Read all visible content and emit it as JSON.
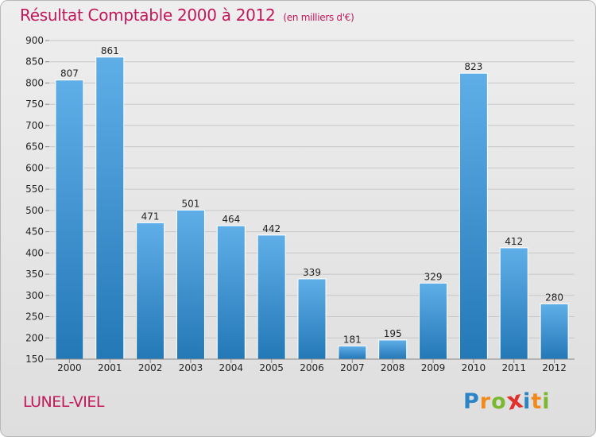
{
  "chart_data": {
    "type": "bar",
    "title": "Résultat Comptable 2000 à 2012",
    "subtitle": "(en milliers d'€)",
    "categories": [
      "2000",
      "2001",
      "2002",
      "2003",
      "2004",
      "2005",
      "2006",
      "2007",
      "2008",
      "2009",
      "2010",
      "2011",
      "2012"
    ],
    "values": [
      807,
      861,
      471,
      501,
      464,
      442,
      339,
      181,
      195,
      329,
      823,
      412,
      280
    ],
    "ylim": [
      150,
      900
    ],
    "yticks": [
      150,
      200,
      250,
      300,
      350,
      400,
      450,
      500,
      550,
      600,
      650,
      700,
      750,
      800,
      850,
      900
    ],
    "grid": true,
    "xlabel": "",
    "ylabel": ""
  },
  "location": "LUNEL-VIEL",
  "logo": {
    "letters": [
      "P",
      "r",
      "o",
      "x",
      "i",
      "t",
      "i"
    ],
    "colors": [
      "#2a84c6",
      "#f08a1c",
      "#7cb82f",
      "#e0322c",
      "#2a84c6",
      "#f08a1c",
      "#7cb82f"
    ]
  },
  "colors": {
    "title": "#c2185b",
    "bar_light": "#5faee8",
    "bar_dark": "#2378b6",
    "grid": "#c8c8c8",
    "text": "#222222"
  }
}
